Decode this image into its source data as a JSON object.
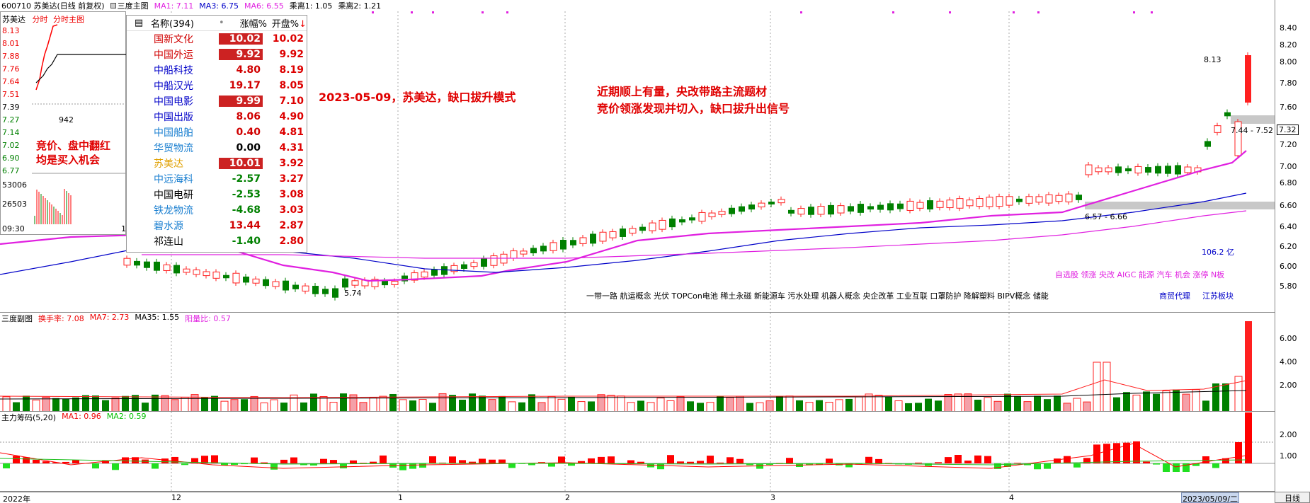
{
  "header": {
    "stock": "600710 苏美达(日线 前复权)",
    "indicator": "三度主图",
    "ma1": "MA1: 7.11",
    "ma3": "MA3: 6.75",
    "ma6": "MA6: 6.55",
    "ratio1": "乘离1: 1.05",
    "ratio2": "乘离2: 1.21"
  },
  "main_axis": [
    "8.40",
    "8.20",
    "8.00",
    "7.80",
    "7.60",
    "7.32",
    "7.20",
    "7.00",
    "6.80",
    "6.60",
    "6.40",
    "6.20",
    "6.00",
    "5.80"
  ],
  "sub_axis": [
    "6.00",
    "4.00",
    "2.00"
  ],
  "chip_axis": [
    "2.00",
    "1.00"
  ],
  "intraday": {
    "title_name": "苏美达",
    "title_tab1": "分时",
    "title_tab2": "分时主图",
    "prices": [
      "8.13",
      "8.01",
      "7.88",
      "7.76",
      "7.64",
      "7.51",
      "7.39",
      "7.27",
      "7.14",
      "7.02",
      "6.90",
      "6.77"
    ],
    "vol_labels": [
      "53006",
      "26503"
    ],
    "mid_value": "942",
    "time_label": "09:30",
    "time_right": "1"
  },
  "stock_list": {
    "header_name": "名称(394)",
    "header_dot": "•",
    "header_chg": "涨幅%",
    "header_open": "开盘%",
    "rows": [
      {
        "name": "国新文化",
        "chg": "10.02",
        "open": "10.02",
        "name_color": "#d00000",
        "box": true
      },
      {
        "name": "中国外运",
        "chg": "9.92",
        "open": "9.92",
        "name_color": "#d00000",
        "box": true
      },
      {
        "name": "中船科技",
        "chg": "4.80",
        "open": "8.19",
        "name_color": "#0000c8",
        "box": false,
        "chg_color": "#d00000"
      },
      {
        "name": "中船汉光",
        "chg": "19.17",
        "open": "8.05",
        "name_color": "#0000c8",
        "box": false,
        "chg_color": "#d00000"
      },
      {
        "name": "中国电影",
        "chg": "9.99",
        "open": "7.10",
        "name_color": "#0000c8",
        "box": true
      },
      {
        "name": "中国出版",
        "chg": "8.06",
        "open": "4.90",
        "name_color": "#0000c8",
        "box": false,
        "chg_color": "#d00000"
      },
      {
        "name": "中国船舶",
        "chg": "0.40",
        "open": "4.81",
        "name_color": "#1a7fd0",
        "box": false,
        "chg_color": "#d00000"
      },
      {
        "name": "华贸物流",
        "chg": "0.00",
        "open": "4.31",
        "name_color": "#1a7fd0",
        "box": false,
        "chg_color": "#000000"
      },
      {
        "name": "苏美达",
        "chg": "10.01",
        "open": "3.92",
        "name_color": "#e0a000",
        "box": true
      },
      {
        "name": "中远海科",
        "chg": "-2.57",
        "open": "3.27",
        "name_color": "#1a7fd0",
        "box": false,
        "chg_color": "#008000"
      },
      {
        "name": "中国电研",
        "chg": "-2.53",
        "open": "3.08",
        "name_color": "#000000",
        "box": false,
        "chg_color": "#008000"
      },
      {
        "name": "铁龙物流",
        "chg": "-4.68",
        "open": "3.03",
        "name_color": "#1a7fd0",
        "box": false,
        "chg_color": "#008000"
      },
      {
        "name": "碧水源",
        "chg": "13.44",
        "open": "2.87",
        "name_color": "#1a7fd0",
        "box": false,
        "chg_color": "#d00000"
      },
      {
        "name": "祁连山",
        "chg": "-1.40",
        "open": "2.80",
        "name_color": "#000000",
        "box": false,
        "chg_color": "#008000"
      }
    ]
  },
  "annotations": {
    "left1": "竞价、盘中翻红",
    "left2": "均是买入机会",
    "title": "2023-05-09，苏美达，缺口拔升模式",
    "right1": "近期顺上有量，央改带路主流题材",
    "right2": "竞价领涨发现并切入，缺口拔升出信号"
  },
  "chart_labels": {
    "high_marker": "8.13",
    "gap1": "7.44 - 7.52",
    "gap2": "6.57 - 6.66",
    "low_marker": "5.74",
    "amount": "106.2 亿",
    "tags_right": "自选股 领涨 央改 AIGC 能源 汽车 机会 涨停 N板",
    "tags_bottom": "一带一路 航运概念 光伏 TOPCon电池 稀土永磁 新能源车 污水处理 机器人概念 央企改革 工业互联 口罩防护 降解塑料 BIPV概念 储能",
    "tag_b1": "商贸代理",
    "tag_b2": "江苏板块"
  },
  "sub_header": {
    "title": "三度副图",
    "turnover": "换手率: 7.08",
    "ma7": "MA7: 2.73",
    "ma35": "MA35: 1.55",
    "ratio": "阳量比: 0.57"
  },
  "chip_header": {
    "title": "主力筹码(5,20)",
    "ma1": "MA1: 0.96",
    "ma2": "MA2: 0.59"
  },
  "date_axis": {
    "d1": "2022年",
    "d2": "12",
    "d3": "1",
    "d4": "2",
    "d5": "3",
    "d6": "4",
    "current": "2023/05/09/二",
    "timeframe": "日线"
  },
  "colors": {
    "up": "#ff2020",
    "down": "#008000",
    "ma1": "#e020e0",
    "ma3": "#0000c8",
    "ma6": "#e020e0",
    "gap": "#c8c8c8"
  }
}
